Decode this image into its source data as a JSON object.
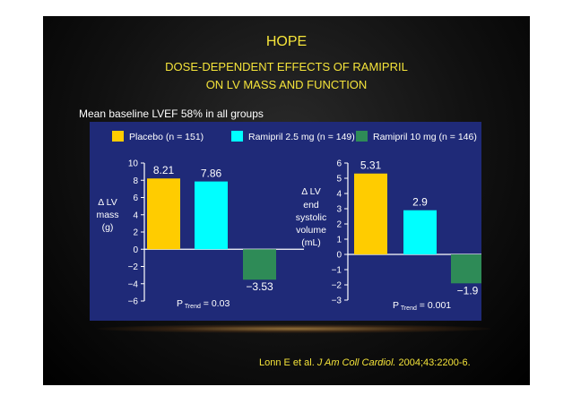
{
  "slide": {
    "title": "HOPE",
    "subtitle_line1": "DOSE-DEPENDENT EFFECTS OF RAMIPRIL",
    "subtitle_line2": "ON LV MASS AND FUNCTION",
    "note": "Mean baseline LVEF 58% in all groups",
    "citation_authors": "Lonn E et al.",
    "citation_journal": "J Am Coll Cardiol.",
    "citation_ref": "2004;43:2200-6."
  },
  "colors": {
    "panel_bg": "#1f2a78",
    "placebo": "#ffcc00",
    "ramipril_2_5": "#00ffff",
    "ramipril_10": "#2e8b57",
    "title": "#f5e43a"
  },
  "chart_data": [
    {
      "type": "bar",
      "legend": [
        "Placebo (n = 151)",
        "Ramipril 2.5 mg (n = 149)",
        "Ramipril 10 mg (n = 146)"
      ],
      "ylabel_lines": [
        "Δ LV",
        "mass",
        "(g)"
      ],
      "ylim": [
        -6,
        10
      ],
      "yticks": [
        10,
        8,
        6,
        4,
        2,
        0,
        -2,
        -4,
        -6
      ],
      "ytick_labels": [
        "10",
        "8",
        "6",
        "4",
        "2",
        "0",
        "−2",
        "−4",
        "−6"
      ],
      "values": [
        8.21,
        7.86,
        -3.53
      ],
      "value_labels": [
        "8.21",
        "7.86",
        "−3.53"
      ],
      "p_trend": {
        "prefix": "P",
        "sub": "Trend",
        "value": " = 0.03"
      }
    },
    {
      "type": "bar",
      "ylabel_lines": [
        "Δ LV",
        "end",
        "systolic",
        "volume",
        "(mL)"
      ],
      "ylim": [
        -3,
        6
      ],
      "yticks": [
        6,
        5,
        4,
        3,
        2,
        1,
        0,
        -1,
        -2,
        -3
      ],
      "ytick_labels": [
        "6",
        "5",
        "4",
        "3",
        "2",
        "1",
        "0",
        "−1",
        "−2",
        "−3"
      ],
      "values": [
        5.31,
        2.9,
        -1.9
      ],
      "value_labels": [
        "5.31",
        "2.9",
        "−1.9"
      ],
      "p_trend": {
        "prefix": "P",
        "sub": "Trend",
        "value": " = 0.001"
      }
    }
  ]
}
